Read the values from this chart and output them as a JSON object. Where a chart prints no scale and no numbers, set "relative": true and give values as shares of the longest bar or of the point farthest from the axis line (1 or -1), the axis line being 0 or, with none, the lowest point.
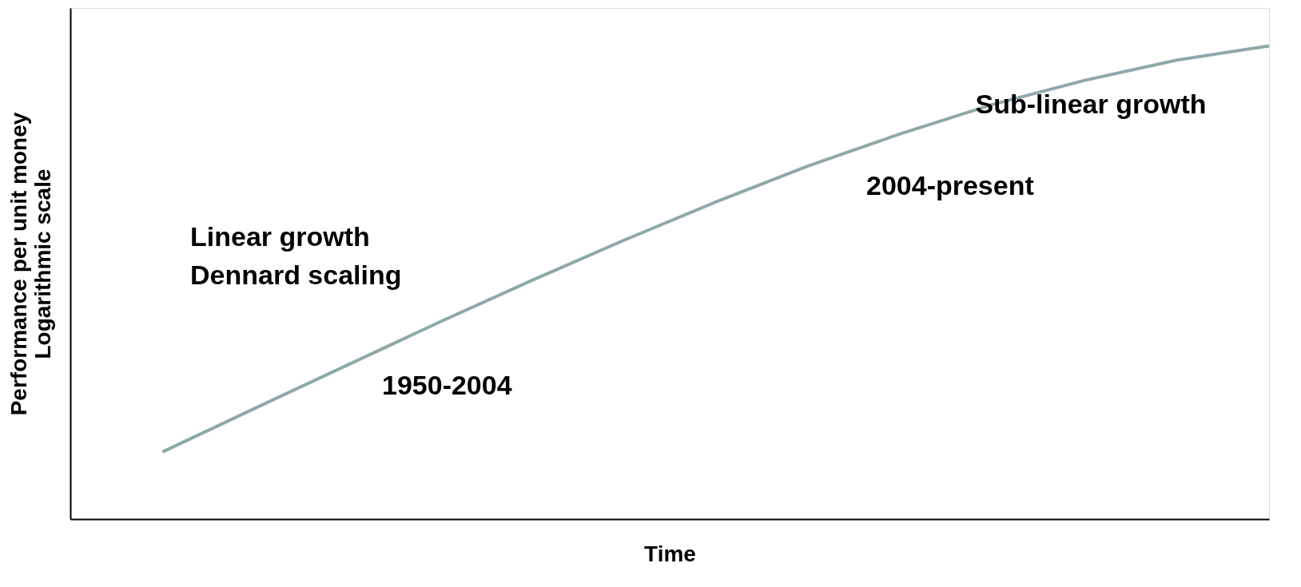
{
  "chart_data": {
    "type": "line",
    "relative": true,
    "xlabel": "Time",
    "ylabel": "Performance per unit money\nLogarithmic scale",
    "categories": [
      null,
      null,
      null,
      null,
      null,
      null,
      null,
      null,
      null,
      null,
      null,
      null,
      null,
      null
    ],
    "series": [
      {
        "color": "#8fa8aa",
        "values": [
          null,
          0.142,
          0.234,
          0.325,
          0.416,
          0.504,
          0.589,
          0.67,
          0.746,
          0.814,
          0.876,
          0.927,
          0.97,
          1.0
        ]
      }
    ],
    "annotations": [
      "Linear growth",
      "Dennard scaling",
      "1950-2004",
      "2004-present",
      "Sub-linear growth"
    ],
    "grid": false,
    "legend": false,
    "marker": "none",
    "line_style": "solid"
  }
}
